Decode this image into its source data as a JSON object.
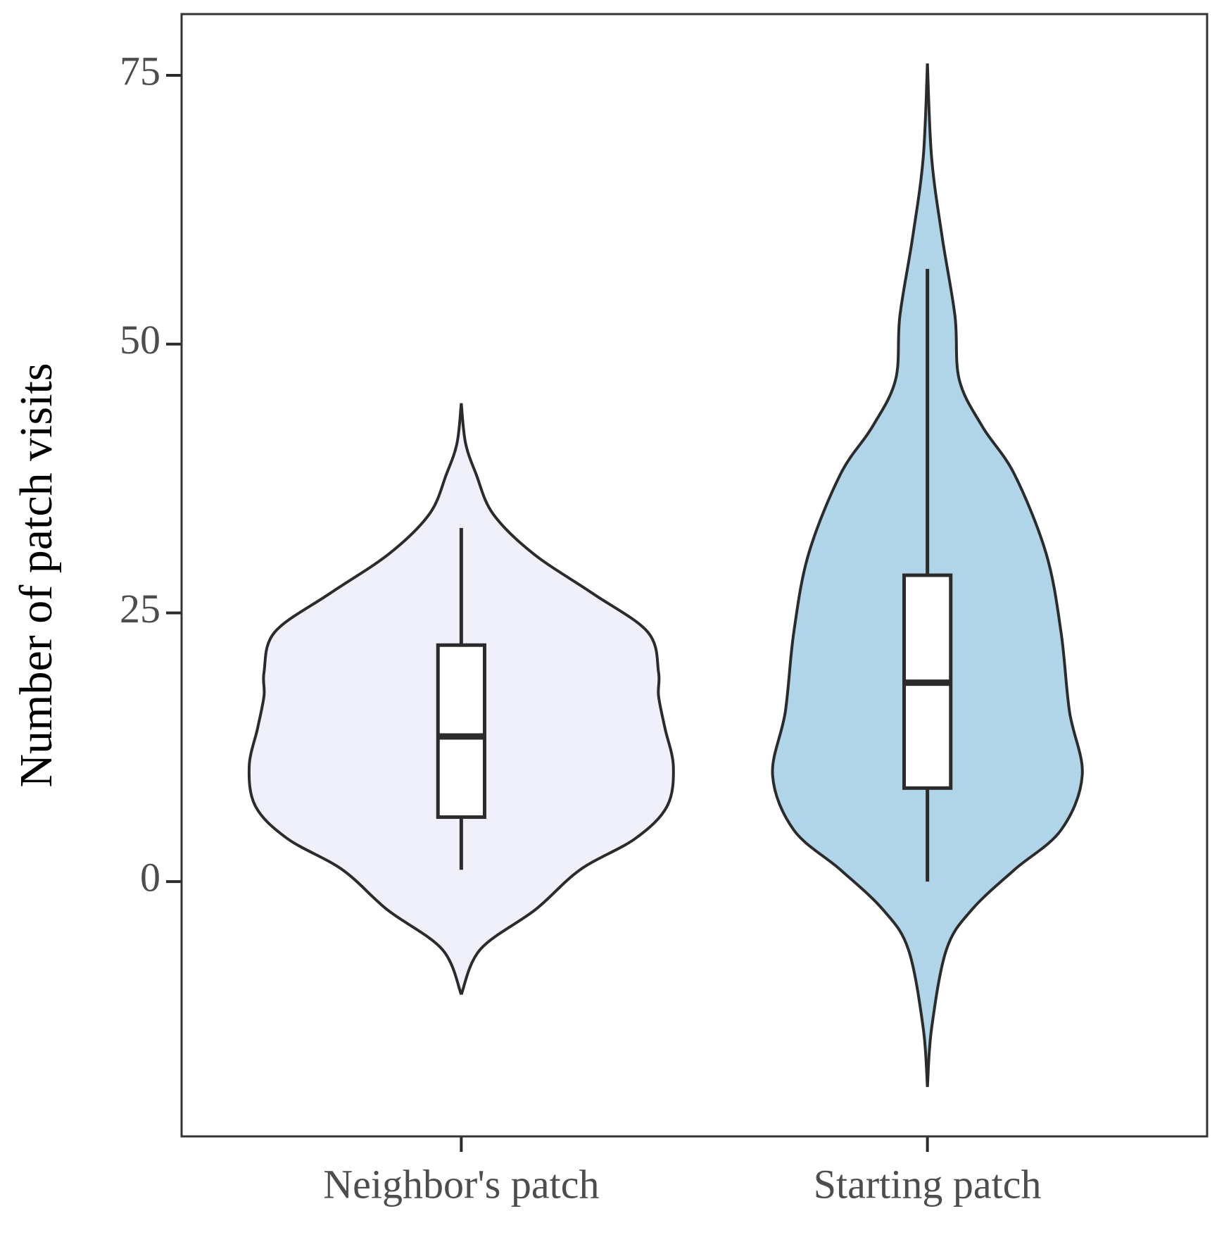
{
  "chart_data": {
    "type": "violin",
    "ylabel": "Number of patch visits",
    "categories": [
      "Neighbor's patch",
      "Starting patch"
    ],
    "ylim": [
      -23.7,
      80.7
    ],
    "yticks": [
      0,
      25,
      50,
      75
    ],
    "series": [
      {
        "color": "#f0f0fb",
        "box": {
          "whisker_low": 1.1,
          "q1": 6.0,
          "median": 13.5,
          "q3": 22.0,
          "whisker_high": 32.9
        },
        "violin_y": [
          44.5,
          40.8,
          37.9,
          34.2,
          30.5,
          26.8,
          23.2,
          19.5,
          17.3,
          14.3,
          10.7,
          7.0,
          4.0,
          1.1,
          -2.6,
          -6.3,
          -10.5
        ],
        "violin_density": [
          0,
          0.02,
          0.07,
          0.15,
          0.34,
          0.62,
          0.88,
          0.93,
          0.93,
          0.96,
          1.0,
          0.97,
          0.82,
          0.56,
          0.35,
          0.09,
          0
        ]
      },
      {
        "color": "#b0d5e8",
        "box": {
          "whisker_low": 0,
          "q1": 8.7,
          "median": 18.5,
          "q3": 28.5,
          "whisker_high": 57.0
        },
        "violin_y": [
          76.1,
          67.3,
          59.9,
          52.6,
          46.7,
          42.3,
          37.9,
          30.5,
          23.2,
          15.8,
          9.9,
          4.8,
          1.1,
          -2.6,
          -6.3,
          -13.6,
          -19.1
        ],
        "violin_density": [
          0,
          0.02,
          0.07,
          0.13,
          0.15,
          0.26,
          0.41,
          0.56,
          0.63,
          0.67,
          0.73,
          0.63,
          0.41,
          0.21,
          0.09,
          0.02,
          0
        ]
      }
    ]
  }
}
